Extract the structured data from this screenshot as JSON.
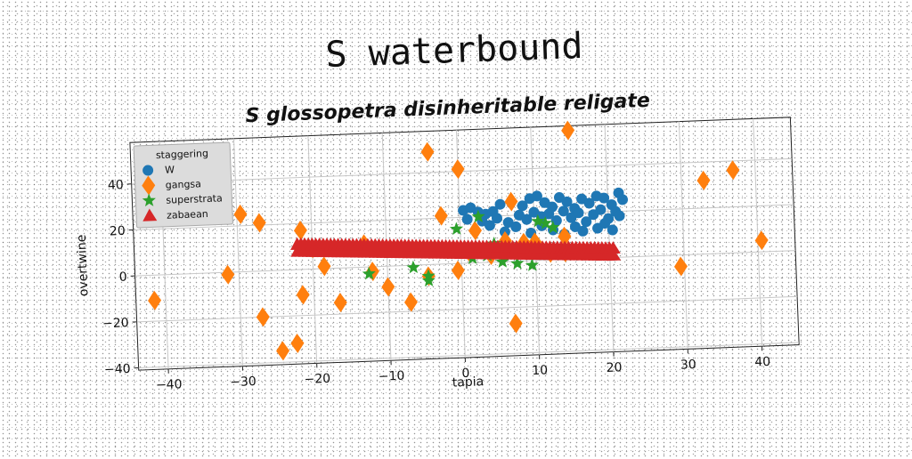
{
  "chart_data": {
    "type": "scatter",
    "suptitle": "S waterbound",
    "title": "S glossopetra disinheritable religate",
    "xlabel": "tapia",
    "ylabel": "overtwine",
    "xlim": [
      -44,
      45
    ],
    "ylim": [
      -41,
      58
    ],
    "xticks": [
      -40,
      -30,
      -20,
      -10,
      0,
      10,
      20,
      30,
      40
    ],
    "yticks": [
      -40,
      -20,
      0,
      20,
      40
    ],
    "grid": true,
    "legend": {
      "title": "staggering",
      "placement": "upper-left"
    },
    "series": [
      {
        "name": "W",
        "marker": "circle",
        "color": "#1f77b4",
        "points": [
          [
            0.5,
            23
          ],
          [
            1.5,
            24
          ],
          [
            2.5,
            22
          ],
          [
            3.5,
            21
          ],
          [
            4.5,
            22
          ],
          [
            5.5,
            25
          ],
          [
            7.0,
            26
          ],
          [
            8.5,
            24
          ],
          [
            9.5,
            27
          ],
          [
            10.5,
            28
          ],
          [
            11.5,
            25
          ],
          [
            12.5,
            23
          ],
          [
            13.5,
            27
          ],
          [
            14.5,
            25
          ],
          [
            15.5,
            22
          ],
          [
            16.5,
            26
          ],
          [
            17.5,
            24
          ],
          [
            18.5,
            27
          ],
          [
            19.5,
            26
          ],
          [
            20.5,
            23
          ],
          [
            21.5,
            28
          ],
          [
            22.0,
            25
          ],
          [
            3.0,
            18
          ],
          [
            4.0,
            16
          ],
          [
            5.0,
            19
          ],
          [
            6.5,
            17
          ],
          [
            8.0,
            20
          ],
          [
            9.0,
            18
          ],
          [
            10.0,
            21
          ],
          [
            11.0,
            19
          ],
          [
            12.0,
            20
          ],
          [
            13.0,
            17
          ],
          [
            14.0,
            21
          ],
          [
            15.0,
            18
          ],
          [
            16.0,
            20
          ],
          [
            17.0,
            16
          ],
          [
            18.0,
            19
          ],
          [
            19.0,
            21
          ],
          [
            20.0,
            17
          ],
          [
            21.0,
            20
          ],
          [
            2.0,
            14
          ],
          [
            6.0,
            13
          ],
          [
            9.5,
            12
          ],
          [
            12.5,
            13
          ],
          [
            15.5,
            14
          ],
          [
            18.5,
            13
          ],
          [
            20.5,
            12
          ],
          [
            11.0,
            15
          ],
          [
            7.5,
            15
          ],
          [
            16.5,
            12
          ],
          [
            14.0,
            11
          ],
          [
            19.5,
            15
          ],
          [
            1.0,
            19
          ],
          [
            21.5,
            18
          ]
        ]
      },
      {
        "name": "gangsa",
        "marker": "diamond",
        "color": "#ff7f0e",
        "points": [
          [
            -41.5,
            -11
          ],
          [
            -31.5,
            -1
          ],
          [
            -29.5,
            25
          ],
          [
            -27,
            21
          ],
          [
            -27,
            -20
          ],
          [
            -24.5,
            -35
          ],
          [
            -22.5,
            -32
          ],
          [
            -21.5,
            17
          ],
          [
            -21.5,
            -11
          ],
          [
            -20,
            9
          ],
          [
            -18.5,
            1
          ],
          [
            -16.5,
            -15
          ],
          [
            -13,
            10
          ],
          [
            -12,
            -2
          ],
          [
            -10,
            -9
          ],
          [
            -7,
            -16
          ],
          [
            -4.5,
            -5
          ],
          [
            -4,
            49
          ],
          [
            -2.5,
            21
          ],
          [
            -0.5,
            -3
          ],
          [
            0,
            41
          ],
          [
            1,
            5
          ],
          [
            2,
            14
          ],
          [
            4,
            3
          ],
          [
            7,
            26
          ],
          [
            6,
            9
          ],
          [
            10,
            8
          ],
          [
            8.5,
            8
          ],
          [
            12,
            3
          ],
          [
            14,
            10
          ],
          [
            14,
            3
          ],
          [
            7,
            -27
          ],
          [
            15,
            56
          ],
          [
            29.5,
            -5
          ],
          [
            33,
            32
          ],
          [
            37,
            36
          ],
          [
            40.5,
            5
          ]
        ]
      },
      {
        "name": "superstrata",
        "marker": "star",
        "color": "#2ca02c",
        "points": [
          [
            -12.5,
            -3
          ],
          [
            -6.5,
            -1
          ],
          [
            -4.5,
            -7
          ],
          [
            -4.5,
            -5
          ],
          [
            -0.5,
            15
          ],
          [
            1.5,
            2
          ],
          [
            2.5,
            20
          ],
          [
            3.5,
            3
          ],
          [
            5.5,
            0
          ],
          [
            7.5,
            -1
          ],
          [
            9.5,
            -2
          ],
          [
            10.5,
            17
          ],
          [
            11.5,
            16
          ],
          [
            12.5,
            14
          ],
          [
            -2.5,
            5
          ],
          [
            4.5,
            8
          ]
        ]
      },
      {
        "name": "zabaean",
        "marker": "triangle",
        "color": "#d62728",
        "band": {
          "x_start": -22,
          "x_end": 20.5,
          "count": 86,
          "y_upper": 11,
          "y_lower": 4
        }
      }
    ]
  }
}
